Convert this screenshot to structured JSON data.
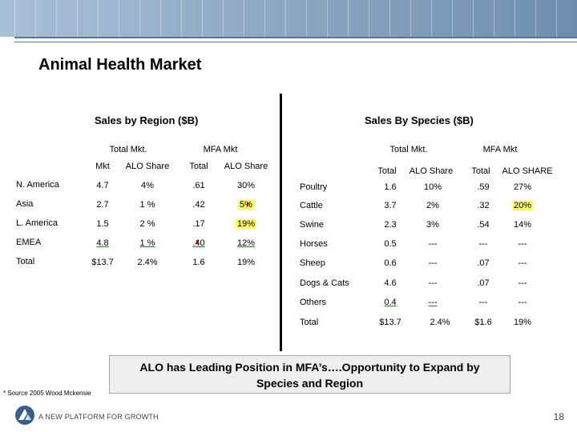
{
  "title": "Animal Health Market",
  "region": {
    "heading": "Sales by Region ($B)",
    "group_total": "Total Mkt.",
    "group_mfa": "MFA Mkt",
    "col_mkt": "Mkt",
    "col_alo_share": "ALO Share",
    "col_total": "Total",
    "col_alo_share2": "ALO Share",
    "rows": [
      {
        "name": "N. America",
        "mkt": "4.7",
        "alo": "4%",
        "mfa_total": ".61",
        "mfa_alo": "30%"
      },
      {
        "name": "Asia",
        "mkt": "2.7",
        "alo": "1 %",
        "mfa_total": ".42",
        "mfa_alo": "5%"
      },
      {
        "name": "L. America",
        "mkt": "1.5",
        "alo": "2 %",
        "mfa_total": ".17",
        "mfa_alo": "19%"
      },
      {
        "name": "EMEA",
        "mkt": "4.8",
        "alo": "1 %",
        "mfa_total": ".40",
        "mfa_alo": "12%"
      },
      {
        "name": "Total",
        "mkt": "$13.7",
        "alo": "2.4%",
        "mfa_total": "1.6",
        "mfa_alo": "19%"
      }
    ]
  },
  "species": {
    "heading": "Sales By Species ($B)",
    "group_total": "Total Mkt.",
    "group_mfa": "MFA Mkt",
    "col_total": "Total",
    "col_alo_share": "ALO Share",
    "col_total2": "Total",
    "col_alo_share2": "ALO SHARE",
    "rows": [
      {
        "name": "Poultry",
        "total": "1.6",
        "alo": "10%",
        "mfa_total": ".59",
        "mfa_alo": "27%"
      },
      {
        "name": "Cattle",
        "total": "3.7",
        "alo": "2%",
        "mfa_total": ".32",
        "mfa_alo": "20%"
      },
      {
        "name": "Swine",
        "total": "2.3",
        "alo": "3%",
        "mfa_total": ".54",
        "mfa_alo": "14%"
      },
      {
        "name": "Horses",
        "total": "0.5",
        "alo": "---",
        "mfa_total": "---",
        "mfa_alo": "---"
      },
      {
        "name": "Sheep",
        "total": "0.6",
        "alo": "---",
        "mfa_total": ".07",
        "mfa_alo": "---"
      },
      {
        "name": "Dogs & Cats",
        "total": "4.6",
        "alo": "---",
        "mfa_total": ".07",
        "mfa_alo": "---"
      },
      {
        "name": "Others",
        "total": "0.4",
        "alo": "---",
        "mfa_total": "---",
        "mfa_alo": "---"
      },
      {
        "name": "Total",
        "total": "$13.7",
        "alo": "2.4%",
        "mfa_total": "$1.6",
        "mfa_alo": "19%"
      }
    ]
  },
  "callout_line1": "ALO has Leading Position in MFA’s….Opportunity to Expand by",
  "callout_line2": "Species and Region",
  "source_note": "* Source 2005 Wood Mckensie",
  "footer_text": "A NEW PLATFORM FOR GROWTH",
  "page_number": "18",
  "colors": {
    "band_dark": "#6f8eae",
    "band_light": "#a9bfd6",
    "highlight": "#ffff66",
    "underline_green": "#2e7d32"
  }
}
